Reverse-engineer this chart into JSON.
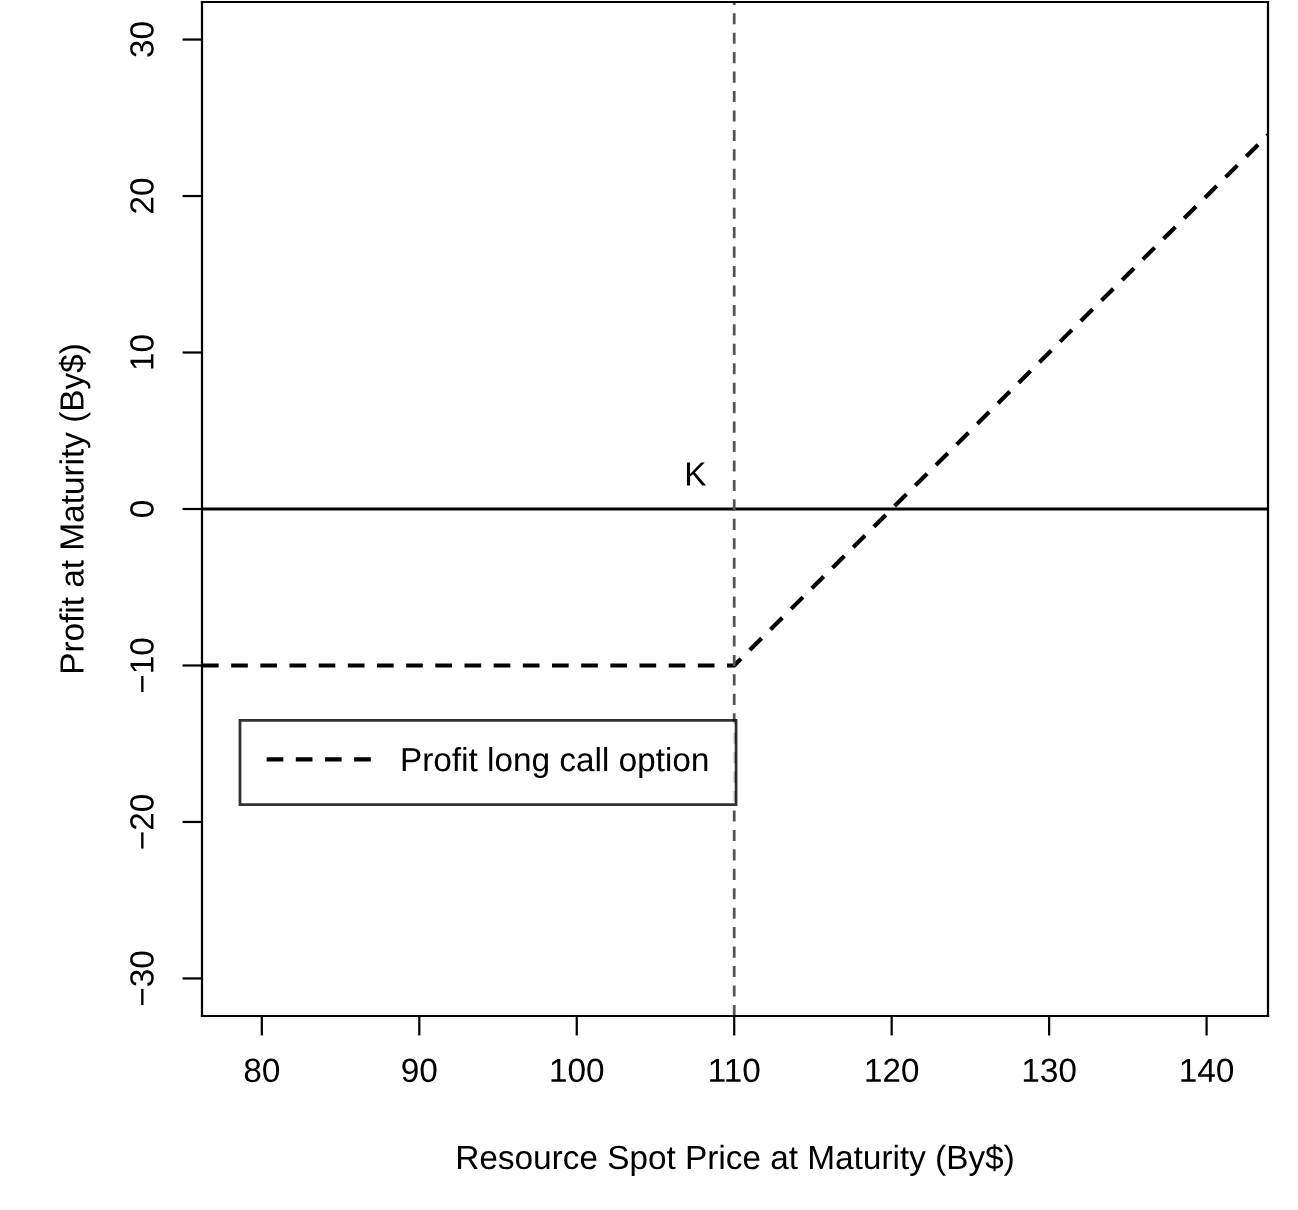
{
  "chart_data": {
    "type": "line",
    "xlabel": "Resource Spot Price at Maturity (By$)",
    "ylabel": "Profit at Maturity (By$)",
    "series": [
      {
        "name": "Profit long call option",
        "color": "#000000",
        "x": [
          76.2,
          110,
          143.9
        ],
        "values": [
          -10,
          -10,
          23.9
        ],
        "line_style": "dashed"
      }
    ],
    "xlim": [
      76.2,
      143.9
    ],
    "xticks": [
      80,
      90,
      100,
      110,
      120,
      130,
      140
    ],
    "ylim": [
      -32.4,
      32.4
    ],
    "yticks": [
      -30,
      -20,
      -10,
      0,
      10,
      20,
      30
    ],
    "ref_lines": [
      {
        "axis": "y",
        "value": 0,
        "color": "#000000",
        "line_style": "solid"
      },
      {
        "axis": "x",
        "value": 110,
        "label": "K",
        "color": "#555555",
        "line_style": "dashed"
      }
    ],
    "grid": false,
    "legend": "left",
    "marker": "none"
  }
}
